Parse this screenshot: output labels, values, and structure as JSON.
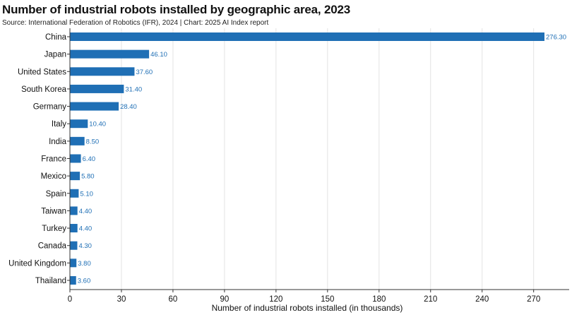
{
  "header": {
    "title": "Number of industrial robots installed by geographic area, 2023",
    "subtitle": "Source: International Federation of Robotics (IFR), 2024 | Chart: 2025 AI Index report"
  },
  "chart_data": {
    "type": "bar",
    "orientation": "horizontal",
    "title": "Number of industrial robots installed by geographic area, 2023",
    "subtitle": "Source: International Federation of Robotics (IFR), 2024 | Chart: 2025 AI Index report",
    "xlabel": "Number of industrial robots installed (in thousands)",
    "ylabel": "",
    "xlim": [
      0,
      276.3
    ],
    "xticks": [
      0,
      30,
      60,
      90,
      120,
      150,
      180,
      210,
      240,
      270
    ],
    "grid": "vertical",
    "bar_color": "#1f6fb5",
    "value_label_color": "#1f6fb5",
    "categories": [
      "China",
      "Japan",
      "United States",
      "South Korea",
      "Germany",
      "Italy",
      "India",
      "France",
      "Mexico",
      "Spain",
      "Taiwan",
      "Turkey",
      "Canada",
      "United Kingdom",
      "Thailand"
    ],
    "values": [
      276.3,
      46.1,
      37.6,
      31.4,
      28.4,
      10.4,
      8.5,
      6.4,
      5.8,
      5.1,
      4.4,
      4.4,
      4.3,
      3.8,
      3.6
    ],
    "value_labels": [
      "276.30",
      "46.10",
      "37.60",
      "31.40",
      "28.40",
      "10.40",
      "8.50",
      "6.40",
      "5.80",
      "5.10",
      "4.40",
      "4.40",
      "4.30",
      "3.80",
      "3.60"
    ]
  }
}
